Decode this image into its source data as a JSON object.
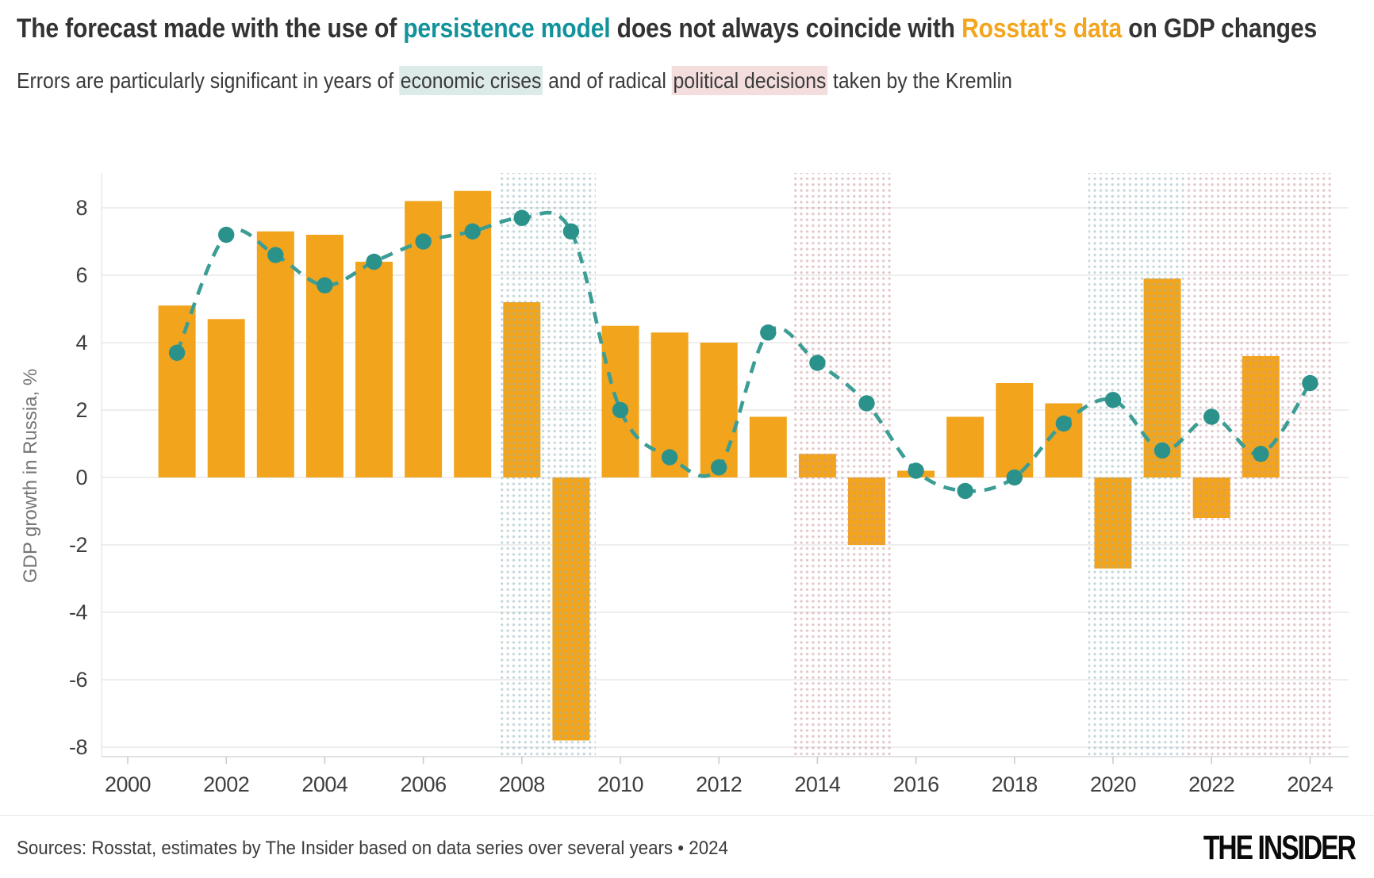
{
  "header": {
    "title_part1": "The forecast made with the use of ",
    "title_highlight1": "persistence model",
    "title_part2": " does not always coincide with ",
    "title_highlight2": "Rosstat's data",
    "title_part3": " on GDP changes",
    "subtitle_part1": "Errors are particularly significant in years of ",
    "subtitle_highlight1": "economic crises",
    "subtitle_part2": " and of radical ",
    "subtitle_highlight2": "political decisions",
    "subtitle_part3": " taken by the Kremlin"
  },
  "chart_data": {
    "type": "bar",
    "title": "",
    "xlabel": "",
    "ylabel": "GDP growth in Russia, %",
    "x_ticks": [
      2000,
      2002,
      2004,
      2006,
      2008,
      2010,
      2012,
      2014,
      2016,
      2018,
      2020,
      2022,
      2024
    ],
    "y_ticks": [
      8,
      6,
      4,
      2,
      0,
      -2,
      -4,
      -6,
      -8
    ],
    "ylim": [
      -9.3,
      9.1
    ],
    "xlim": [
      1999.45,
      2024.8
    ],
    "grid": true,
    "legend_position": "none",
    "series": [
      {
        "name": "Rosstat's data",
        "type": "bar",
        "color": "#F2A41D",
        "x": [
          2001,
          2002,
          2003,
          2004,
          2005,
          2006,
          2007,
          2008,
          2009,
          2010,
          2011,
          2012,
          2013,
          2014,
          2015,
          2016,
          2017,
          2018,
          2019,
          2020,
          2021,
          2022,
          2023
        ],
        "values": [
          5.1,
          4.7,
          7.3,
          7.2,
          6.4,
          8.2,
          8.5,
          5.2,
          -7.8,
          4.5,
          4.3,
          4.0,
          1.8,
          0.7,
          -2.0,
          0.2,
          1.8,
          2.8,
          2.2,
          -2.7,
          5.9,
          -1.2,
          3.6
        ]
      },
      {
        "name": "Persistence model forecast",
        "type": "line",
        "dashed": true,
        "color": "#3C9D95",
        "point_color": "#2B928B",
        "x": [
          2001,
          2002,
          2003,
          2004,
          2005,
          2006,
          2007,
          2008,
          2009,
          2010,
          2011,
          2012,
          2013,
          2014,
          2015,
          2016,
          2017,
          2018,
          2019,
          2020,
          2021,
          2022,
          2023,
          2024
        ],
        "values": [
          3.7,
          7.2,
          6.6,
          5.7,
          6.4,
          7.0,
          7.3,
          7.7,
          7.3,
          2.0,
          0.6,
          0.3,
          4.3,
          3.4,
          2.2,
          0.2,
          -0.4,
          0.0,
          1.6,
          2.3,
          0.8,
          1.8,
          0.7,
          2.8
        ]
      }
    ],
    "regions": [
      {
        "label": "economic crisis",
        "from": 2007.5,
        "to": 2009.5,
        "dot_color": "#8FB4B9",
        "kind": "crisis"
      },
      {
        "label": "political decisions",
        "from": 2013.5,
        "to": 2015.5,
        "dot_color": "#C9969B",
        "kind": "political"
      },
      {
        "label": "economic crisis",
        "from": 2019.5,
        "to": 2021.5,
        "dot_color": "#8FB4B9",
        "kind": "crisis"
      },
      {
        "label": "political decisions",
        "from": 2021.5,
        "to": 2024.45,
        "dot_color": "#C9969B",
        "kind": "political"
      }
    ]
  },
  "footer": {
    "sources": "Sources: Rosstat, estimates by The Insider based on data series over several years • 2024",
    "logo": "THE INSIDER"
  },
  "colors": {
    "title_teal": "#12929B",
    "title_orange": "#F4A51E",
    "highlight_teal_bg": "#DCEAE8",
    "highlight_pink_bg": "#F3DDDD",
    "bar_orange": "#F2A41D",
    "line_teal": "#3C9D95",
    "grid": "#E4E4E4",
    "axis_line": "#D9D9D9",
    "tick_text": "#3F3F3F",
    "axis_label_text": "#757575"
  }
}
